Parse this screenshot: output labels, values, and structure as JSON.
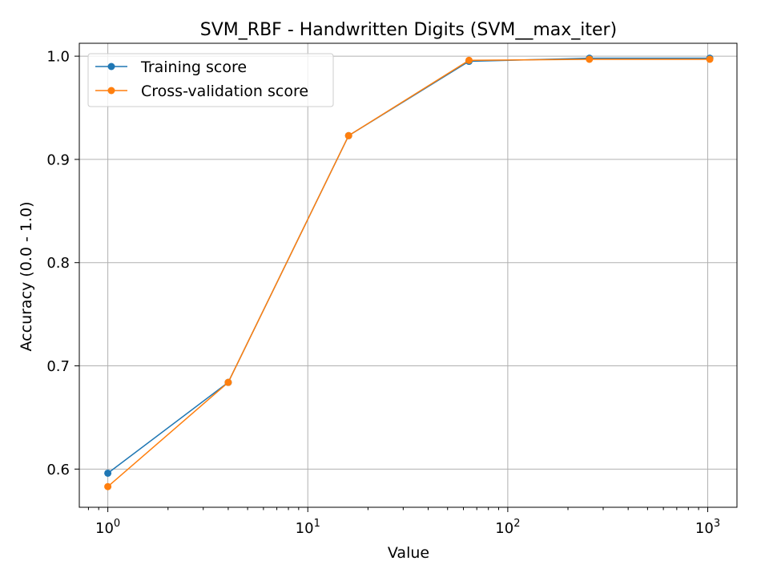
{
  "chart_data": {
    "type": "line",
    "title": "SVM_RBF - Handwritten Digits (SVM__max_iter)",
    "xlabel": "Value",
    "ylabel": "Accuracy (0.0 - 1.0)",
    "xscale": "log",
    "xlim": [
      0.72,
      1400
    ],
    "ylim": [
      0.563,
      1.0125
    ],
    "x_ticks": [
      {
        "base": "10",
        "exp": "0",
        "value": 1
      },
      {
        "base": "10",
        "exp": "1",
        "value": 10
      },
      {
        "base": "10",
        "exp": "2",
        "value": 100
      },
      {
        "base": "10",
        "exp": "3",
        "value": 1000
      }
    ],
    "y_ticks": [
      {
        "label": "0.6",
        "value": 0.6
      },
      {
        "label": "0.7",
        "value": 0.7
      },
      {
        "label": "0.8",
        "value": 0.8
      },
      {
        "label": "0.9",
        "value": 0.9
      },
      {
        "label": "1.0",
        "value": 1.0
      }
    ],
    "x": [
      1,
      4,
      16,
      64,
      256,
      1024
    ],
    "series": [
      {
        "name": "Training score",
        "color": "#1f77b4",
        "values": [
          0.596,
          0.684,
          0.923,
          0.995,
          0.998,
          0.998
        ]
      },
      {
        "name": "Cross-validation score",
        "color": "#ff7f0e",
        "values": [
          0.583,
          0.684,
          0.923,
          0.996,
          0.997,
          0.997
        ]
      }
    ],
    "grid": true,
    "legend_position": "upper-left"
  }
}
